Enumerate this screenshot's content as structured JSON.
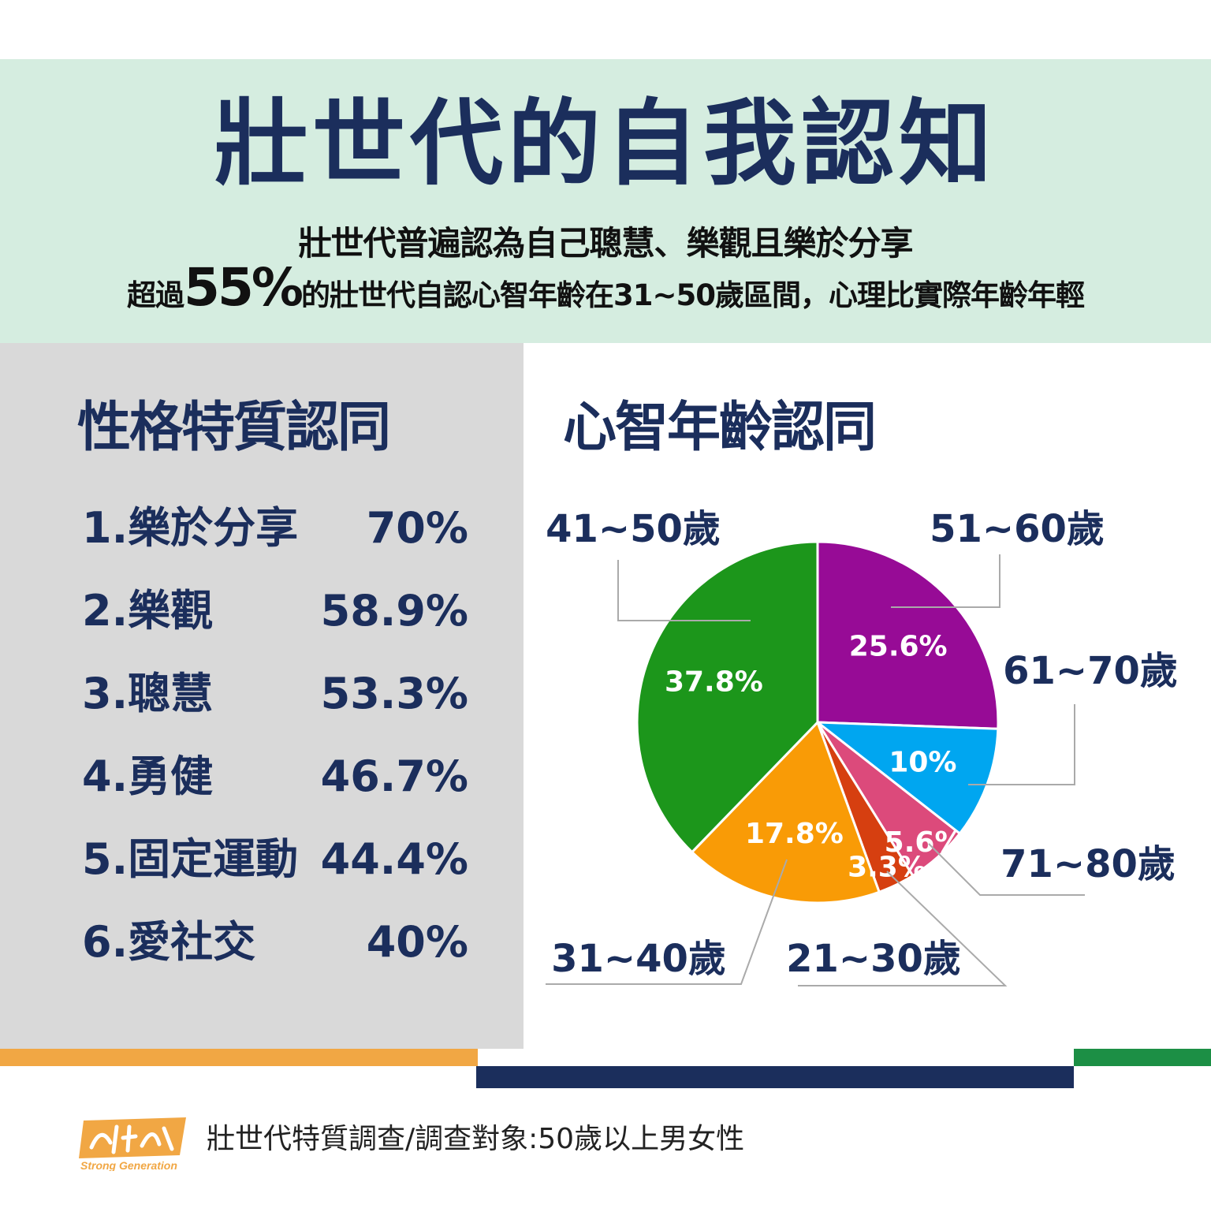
{
  "header": {
    "title": "壯世代的自我認知",
    "subtitle_line1": "壯世代普遍認為自己聰慧、樂觀且樂於分享",
    "subtitle_line2_prefix": "超過",
    "subtitle_line2_highlight": "55%",
    "subtitle_line2_suffix": "的壯世代自認心智年齡在31~50歲區間，心理比實際年齡年輕"
  },
  "traits": {
    "title": "性格特質認同",
    "items": [
      {
        "label": "1.樂於分享",
        "value": "70%"
      },
      {
        "label": "2.樂觀",
        "value": "58.9%"
      },
      {
        "label": "3.聰慧",
        "value": "53.3%"
      },
      {
        "label": "4.勇健",
        "value": "46.7%"
      },
      {
        "label": "5.固定運動",
        "value": "44.4%"
      },
      {
        "label": "6.愛社交",
        "value": "40%"
      }
    ]
  },
  "chart_data": {
    "type": "pie",
    "title": "心智年齡認同",
    "slices": [
      {
        "label": "51~60歲",
        "value": 25.6,
        "display": "25.6%",
        "color": "#970b96"
      },
      {
        "label": "61~70歲",
        "value": 10,
        "display": "10%",
        "color": "#00a6f0"
      },
      {
        "label": "71~80歲",
        "value": 5.6,
        "display": "5.6%",
        "color": "#dc4a7b"
      },
      {
        "label": "21~30歲",
        "value": 3.3,
        "display": "3.3%",
        "color": "#d63f10"
      },
      {
        "label": "31~40歲",
        "value": 17.8,
        "display": "17.8%",
        "color": "#f99b06"
      },
      {
        "label": "41~50歲",
        "value": 37.8,
        "display": "37.8%",
        "color": "#1c961b"
      }
    ]
  },
  "footer": {
    "source": "壯世代特質調查/調查對象:50歲以上男女性",
    "logo_text": "Strong Generation"
  },
  "colors": {
    "navy": "#1b2e5c",
    "header_bg": "#d5ede0",
    "panel_bg": "#d9d9d9",
    "orange_bar": "#f1a744",
    "green_bar": "#1c8f45"
  }
}
